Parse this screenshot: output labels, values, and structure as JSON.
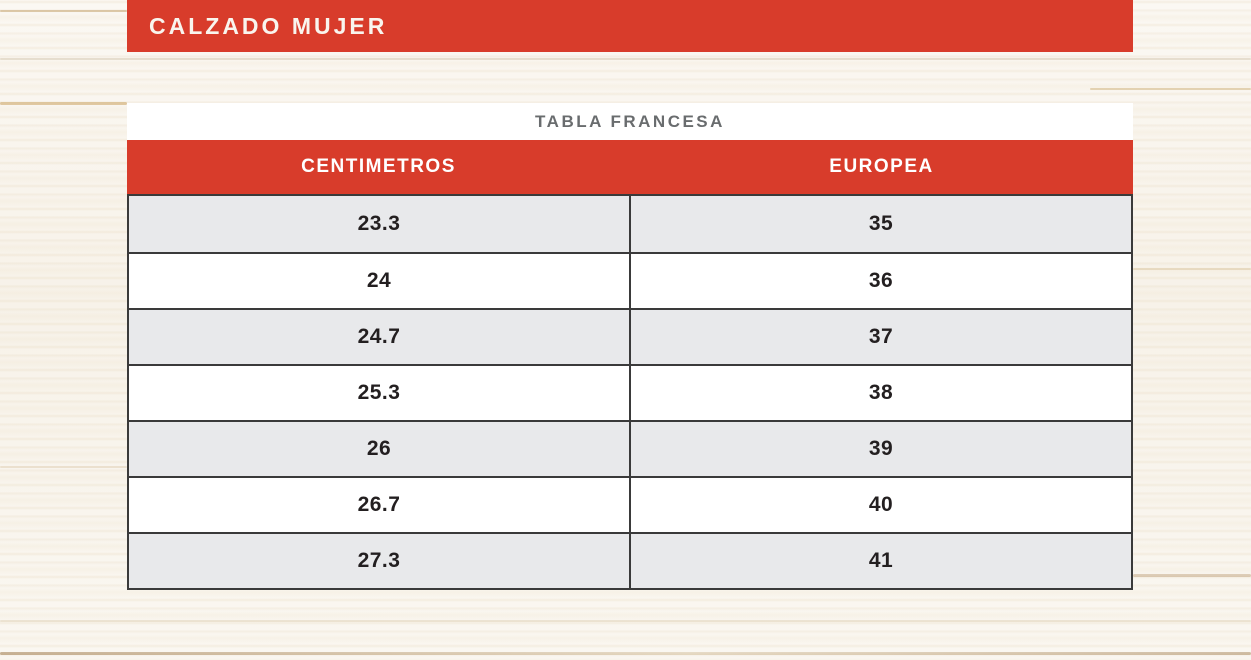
{
  "title_bar": {
    "label": "CALZADO MUJER"
  },
  "chart_data": {
    "type": "table",
    "title": "TABLA FRANCESA",
    "columns": [
      "CENTIMETROS",
      "EUROPEA"
    ],
    "rows": [
      [
        "23.3",
        "35"
      ],
      [
        "24",
        "36"
      ],
      [
        "24.7",
        "37"
      ],
      [
        "25.3",
        "38"
      ],
      [
        "26",
        "39"
      ],
      [
        "26.7",
        "40"
      ],
      [
        "27.3",
        "41"
      ]
    ],
    "notes": "Women's shoe size conversion, centimeters to French/European sizing, alternating gray-white rows, first data row gray"
  },
  "colors": {
    "accent_red": "#d83c2b",
    "row_alt_gray": "#e8e9eb",
    "border_dark": "#3a3a3a",
    "table_title_gray": "#696c6e",
    "text_ink": "#231f20",
    "background_wood_base": "#f9f6f0"
  }
}
